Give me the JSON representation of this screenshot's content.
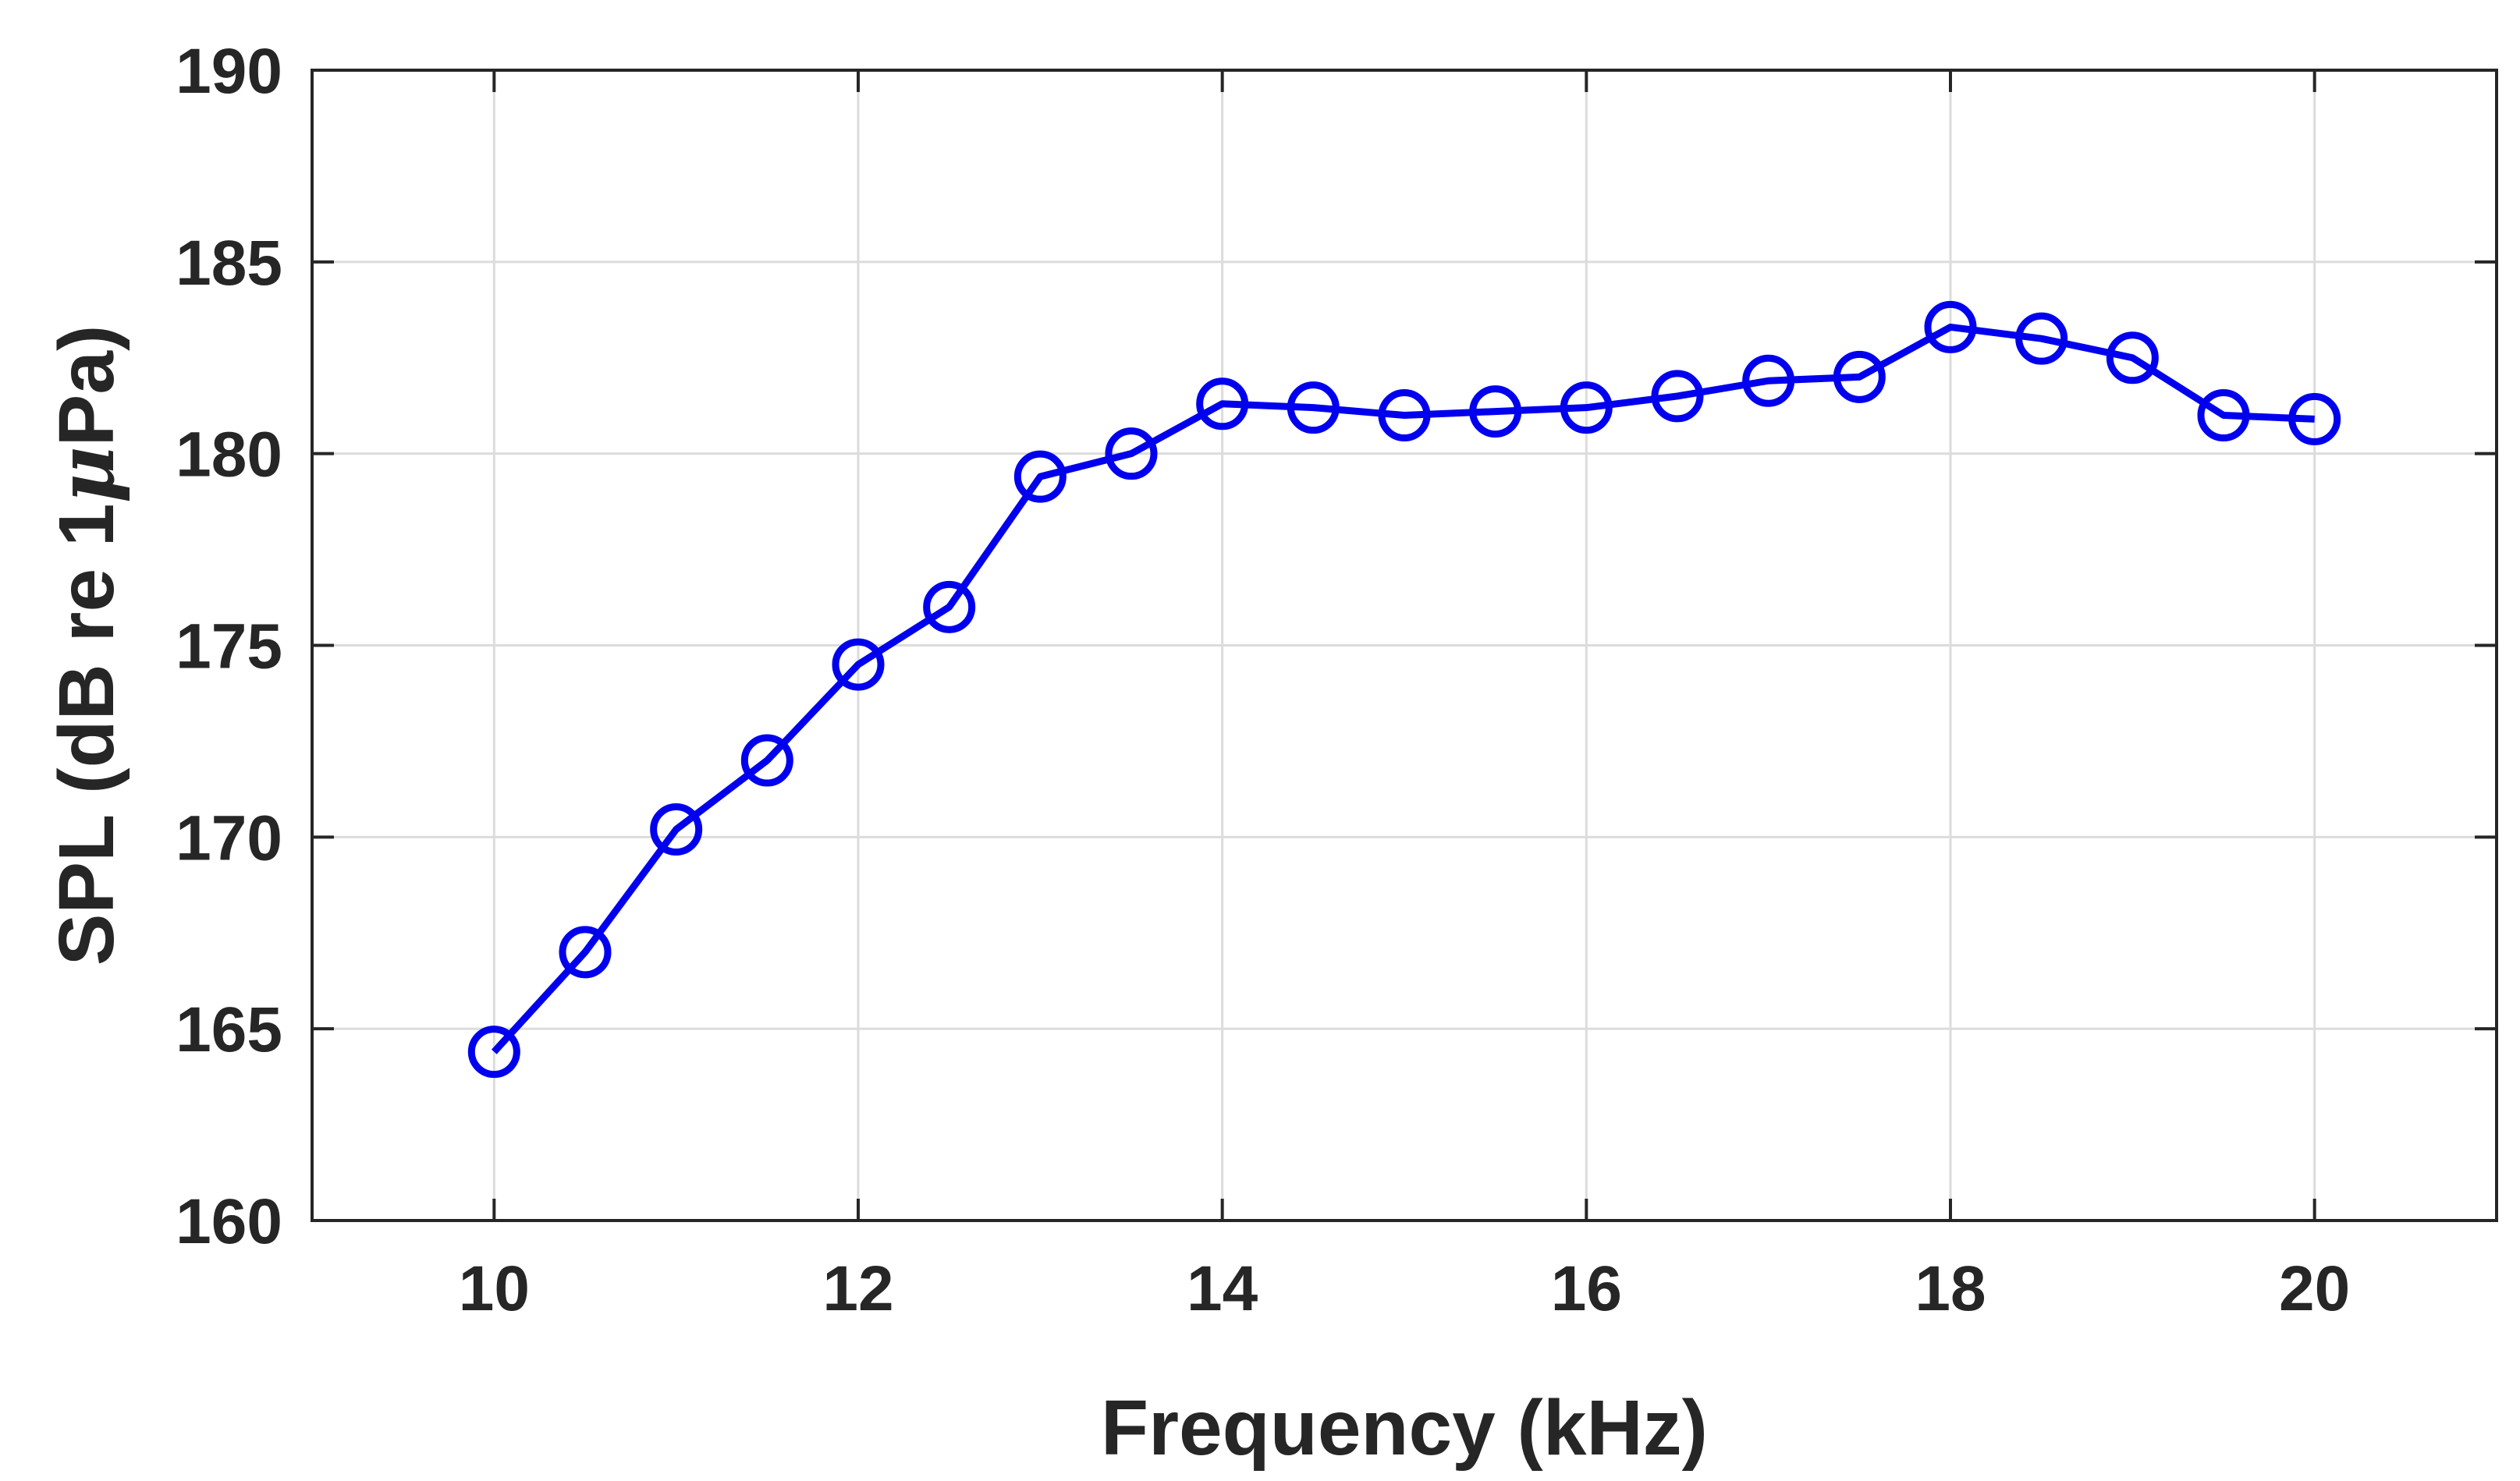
{
  "chart_data": {
    "type": "line",
    "xlabel": "Frequency (kHz)",
    "ylabel": {
      "before": "SPL (dB re 1",
      "symbol": "μ",
      "after": "Pa)"
    },
    "xlim": [
      9,
      21
    ],
    "ylim": [
      160,
      190
    ],
    "xticks": [
      10,
      12,
      14,
      16,
      18,
      20
    ],
    "yticks": [
      160,
      165,
      170,
      175,
      180,
      185,
      190
    ],
    "grid": true,
    "marker": "open-circle",
    "line_color": "#0000ee",
    "series": [
      {
        "x": [
          10,
          10.5,
          11,
          11.5,
          12,
          12.5,
          13,
          13.5,
          14,
          14.5,
          15,
          15.5,
          16,
          16.5,
          17,
          17.5,
          18,
          18.5,
          19,
          19.5,
          20
        ],
        "y": [
          164.4,
          167.0,
          170.2,
          172.0,
          174.5,
          176.0,
          179.4,
          180.0,
          181.3,
          181.2,
          181.0,
          181.1,
          181.2,
          181.5,
          181.9,
          182.0,
          183.3,
          183.0,
          182.5,
          181.0,
          180.9
        ]
      }
    ]
  }
}
